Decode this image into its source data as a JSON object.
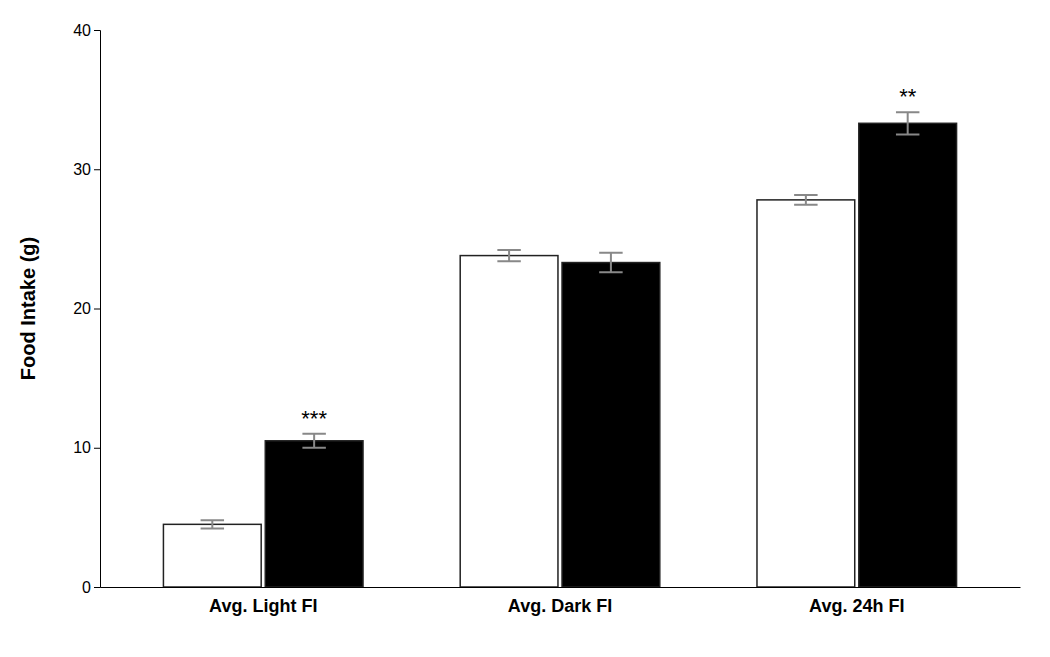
{
  "chart_data": {
    "type": "bar",
    "y_label": "Food Intake (g)",
    "categories": [
      "Avg. Light FI",
      "Avg. Dark FI",
      "Avg. 24h FI"
    ],
    "series": [
      {
        "color": "#FFFFFF",
        "values": [
          4.5,
          23.8,
          27.8
        ],
        "errors": [
          0.3,
          0.4,
          0.35
        ]
      },
      {
        "color": "#000000",
        "values": [
          10.5,
          23.3,
          33.3
        ],
        "errors": [
          0.5,
          0.7,
          0.8
        ],
        "annotations": [
          "***",
          null,
          "**"
        ]
      }
    ],
    "ylim": [
      0,
      40
    ],
    "yticks": [
      0,
      10,
      20,
      30,
      40
    ],
    "grid": false
  }
}
